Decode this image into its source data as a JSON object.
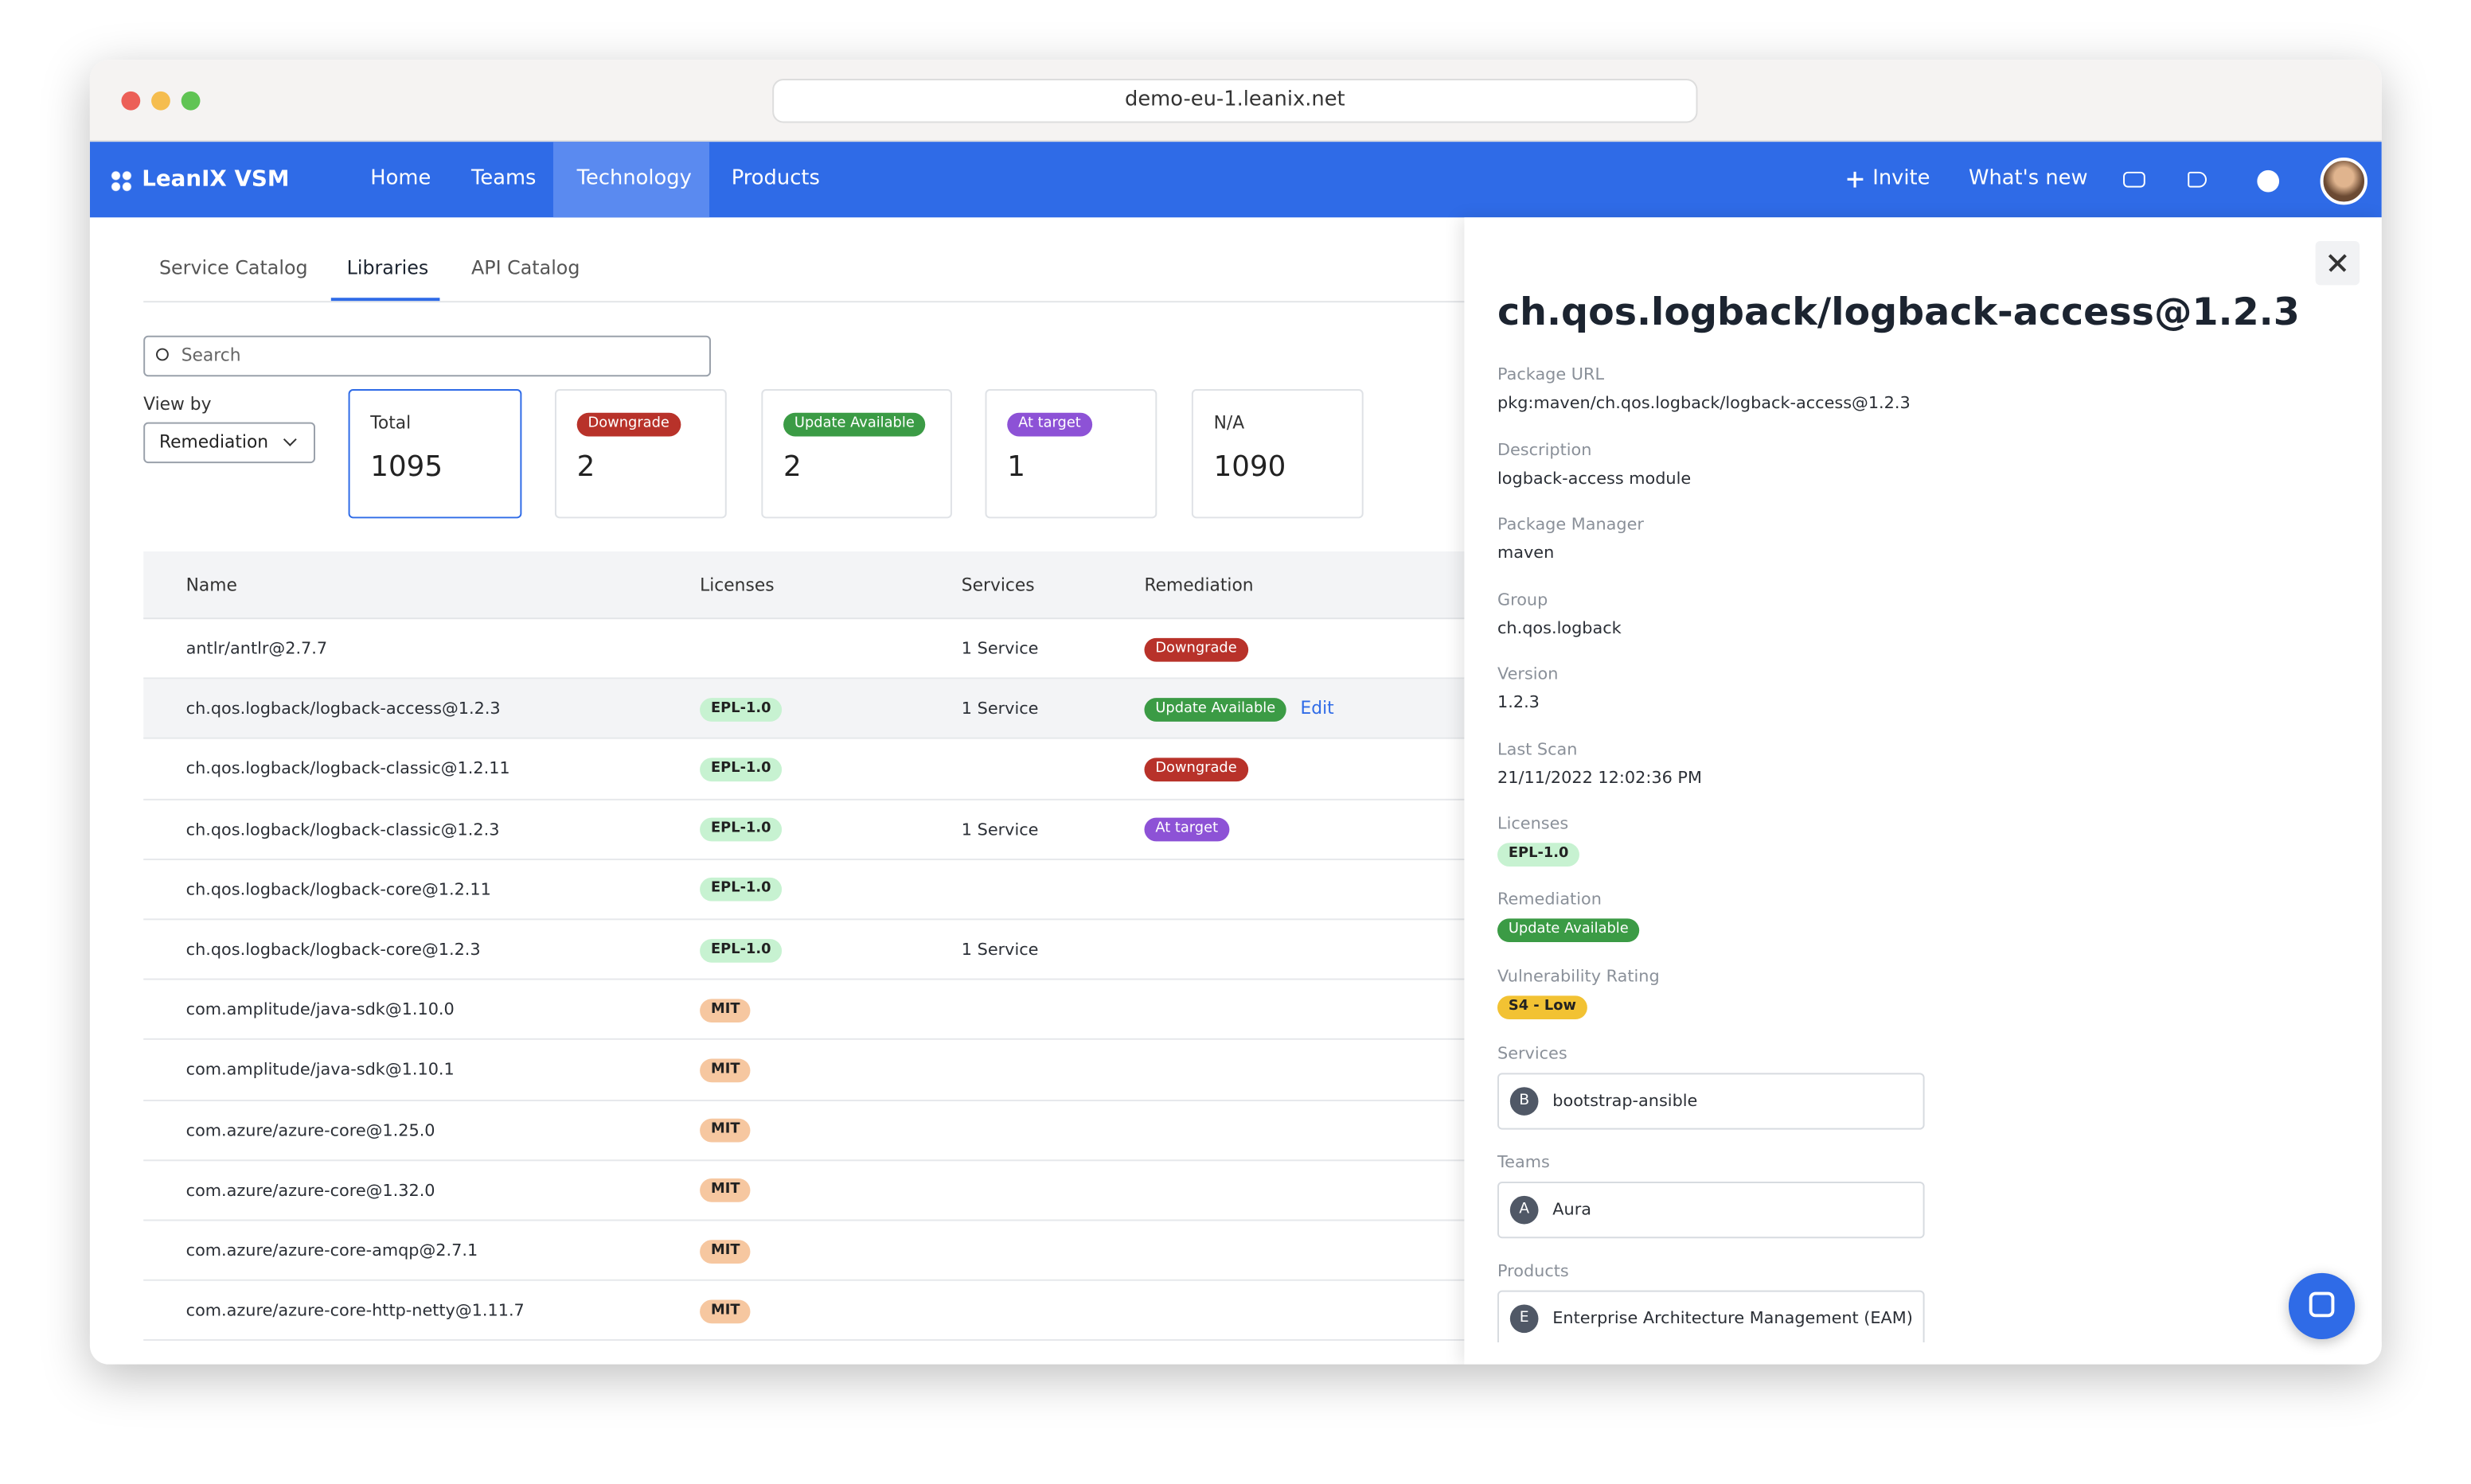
{
  "browser": {
    "url": "demo-eu-1.leanix.net"
  },
  "nav": {
    "brand": "LeanIX VSM",
    "items": [
      "Home",
      "Teams",
      "Technology",
      "Products"
    ],
    "active": 2,
    "invite": "Invite",
    "whats_new": "What's new"
  },
  "tabs": {
    "items": [
      "Service Catalog",
      "Libraries",
      "API Catalog"
    ],
    "active": 1
  },
  "search": {
    "placeholder": "Search"
  },
  "view_by": {
    "label": "View by",
    "value": "Remediation"
  },
  "cards": [
    {
      "label": "Total",
      "value": 1095
    },
    {
      "label": "Downgrade",
      "value": 2
    },
    {
      "label": "Update Available",
      "value": 2
    },
    {
      "label": "At target",
      "value": 1
    },
    {
      "label": "N/A",
      "value": 1090
    }
  ],
  "table": {
    "columns": [
      "Name",
      "Licenses",
      "Services",
      "Remediation"
    ],
    "rows": [
      {
        "name": "antlr/antlr@2.7.7",
        "services": "1 Service",
        "remediation": "Downgrade"
      },
      {
        "name": "ch.qos.logback/logback-access@1.2.3",
        "license": "EPL-1.0",
        "services": "1 Service",
        "remediation": "Update Available",
        "action": "Edit"
      },
      {
        "name": "ch.qos.logback/logback-classic@1.2.11",
        "license": "EPL-1.0",
        "remediation": "Downgrade"
      },
      {
        "name": "ch.qos.logback/logback-classic@1.2.3",
        "license": "EPL-1.0",
        "services": "1 Service",
        "remediation": "At target"
      },
      {
        "name": "ch.qos.logback/logback-core@1.2.11",
        "license": "EPL-1.0"
      },
      {
        "name": "ch.qos.logback/logback-core@1.2.3",
        "license": "EPL-1.0",
        "services": "1 Service"
      },
      {
        "name": "com.amplitude/java-sdk@1.10.0",
        "license": "MIT"
      },
      {
        "name": "com.amplitude/java-sdk@1.10.1",
        "license": "MIT"
      },
      {
        "name": "com.azure/azure-core@1.25.0",
        "license": "MIT"
      },
      {
        "name": "com.azure/azure-core@1.32.0",
        "license": "MIT"
      },
      {
        "name": "com.azure/azure-core-amqp@2.7.1",
        "license": "MIT"
      },
      {
        "name": "com.azure/azure-core-http-netty@1.11.7",
        "license": "MIT"
      }
    ]
  },
  "panel": {
    "title": "ch.qos.logback/logback-access@1.2.3",
    "fields": [
      {
        "label": "Package URL",
        "value": "pkg:maven/ch.qos.logback/logback-access@1.2.3"
      },
      {
        "label": "Description",
        "value": "logback-access module"
      },
      {
        "label": "Package Manager",
        "value": "maven"
      },
      {
        "label": "Group",
        "value": "ch.qos.logback"
      },
      {
        "label": "Version",
        "value": "1.2.3"
      },
      {
        "label": "Last Scan",
        "value": "21/11/2022 12:02:36 PM"
      }
    ],
    "badges": [
      {
        "label": "Licenses",
        "value": "EPL-1.0"
      },
      {
        "label": "Remediation",
        "value": "Update Available"
      },
      {
        "label": "Vulnerability Rating",
        "value": "S4 - Low"
      }
    ],
    "links": [
      {
        "label": "Services",
        "initial": "B",
        "value": "bootstrap-ansible"
      },
      {
        "label": "Teams",
        "initial": "A",
        "value": "Aura"
      },
      {
        "label": "Products",
        "initial": "E",
        "value": "Enterprise Architecture Management (EAM)"
      }
    ]
  }
}
